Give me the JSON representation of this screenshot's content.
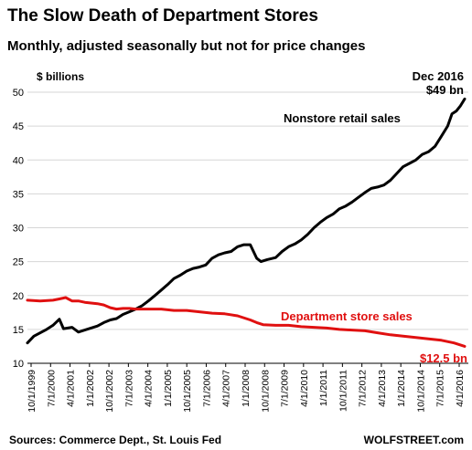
{
  "chart_data": {
    "type": "line",
    "title": "The Slow Death of Department Stores",
    "subtitle": "Monthly, adjusted seasonally but not for price changes",
    "y_unit_label": "$ billions",
    "ylim": [
      10,
      50
    ],
    "y_ticks": [
      10,
      15,
      20,
      25,
      30,
      35,
      40,
      45,
      50
    ],
    "x_tick_labels": [
      "10/1/1999",
      "7/1/2000",
      "4/1/2001",
      "1/1/2002",
      "10/1/2002",
      "7/1/2003",
      "4/1/2004",
      "1/1/2005",
      "10/1/2005",
      "7/1/2006",
      "4/1/2007",
      "1/1/2008",
      "10/1/2008",
      "7/1/2009",
      "4/1/2010",
      "1/1/2011",
      "10/1/2011",
      "7/1/2012",
      "4/1/2013",
      "1/1/2014",
      "10/1/2014",
      "7/1/2015",
      "4/1/2016"
    ],
    "grid": "horizontal",
    "series": [
      {
        "name": "Nonstore retail sales",
        "color": "#000000",
        "points": [
          [
            "1999-10-01",
            13.0
          ],
          [
            "2000-01-01",
            14.0
          ],
          [
            "2000-07-01",
            15.0
          ],
          [
            "2000-10-01",
            15.6
          ],
          [
            "2001-01-01",
            16.5
          ],
          [
            "2001-03-01",
            15.1
          ],
          [
            "2001-07-01",
            15.3
          ],
          [
            "2001-10-01",
            14.6
          ],
          [
            "2002-01-01",
            14.9
          ],
          [
            "2002-07-01",
            15.5
          ],
          [
            "2002-10-01",
            16.0
          ],
          [
            "2003-01-01",
            16.4
          ],
          [
            "2003-04-01",
            16.6
          ],
          [
            "2003-07-01",
            17.2
          ],
          [
            "2003-10-01",
            17.6
          ],
          [
            "2004-01-01",
            18.0
          ],
          [
            "2004-04-01",
            18.5
          ],
          [
            "2004-07-01",
            19.2
          ],
          [
            "2004-10-01",
            20.0
          ],
          [
            "2005-01-01",
            20.8
          ],
          [
            "2005-04-01",
            21.6
          ],
          [
            "2005-07-01",
            22.5
          ],
          [
            "2005-10-01",
            23.0
          ],
          [
            "2006-01-01",
            23.6
          ],
          [
            "2006-04-01",
            24.0
          ],
          [
            "2006-07-01",
            24.2
          ],
          [
            "2006-10-01",
            24.5
          ],
          [
            "2007-01-01",
            25.5
          ],
          [
            "2007-04-01",
            26.0
          ],
          [
            "2007-07-01",
            26.3
          ],
          [
            "2007-10-01",
            26.5
          ],
          [
            "2008-01-01",
            27.2
          ],
          [
            "2008-04-01",
            27.5
          ],
          [
            "2008-07-01",
            27.5
          ],
          [
            "2008-10-01",
            25.5
          ],
          [
            "2008-12-01",
            25.0
          ],
          [
            "2009-03-01",
            25.3
          ],
          [
            "2009-07-01",
            25.6
          ],
          [
            "2009-10-01",
            26.5
          ],
          [
            "2010-01-01",
            27.2
          ],
          [
            "2010-04-01",
            27.6
          ],
          [
            "2010-07-01",
            28.2
          ],
          [
            "2010-10-01",
            29.0
          ],
          [
            "2011-01-01",
            30.0
          ],
          [
            "2011-04-01",
            30.8
          ],
          [
            "2011-07-01",
            31.5
          ],
          [
            "2011-10-01",
            32.0
          ],
          [
            "2012-01-01",
            32.8
          ],
          [
            "2012-04-01",
            33.2
          ],
          [
            "2012-07-01",
            33.8
          ],
          [
            "2012-10-01",
            34.5
          ],
          [
            "2013-01-01",
            35.2
          ],
          [
            "2013-04-01",
            35.8
          ],
          [
            "2013-07-01",
            36.0
          ],
          [
            "2013-10-01",
            36.3
          ],
          [
            "2014-01-01",
            37.0
          ],
          [
            "2014-04-01",
            38.0
          ],
          [
            "2014-07-01",
            39.0
          ],
          [
            "2014-10-01",
            39.5
          ],
          [
            "2015-01-01",
            40.0
          ],
          [
            "2015-04-01",
            40.8
          ],
          [
            "2015-07-01",
            41.2
          ],
          [
            "2015-10-01",
            42.0
          ],
          [
            "2016-01-01",
            43.5
          ],
          [
            "2016-04-01",
            45.0
          ],
          [
            "2016-06-01",
            46.8
          ],
          [
            "2016-08-01",
            47.2
          ],
          [
            "2016-10-01",
            48.0
          ],
          [
            "2016-12-01",
            49.0
          ]
        ]
      },
      {
        "name": "Department store sales",
        "color": "#e01010",
        "points": [
          [
            "1999-10-01",
            19.3
          ],
          [
            "2000-04-01",
            19.2
          ],
          [
            "2000-10-01",
            19.3
          ],
          [
            "2001-01-01",
            19.5
          ],
          [
            "2001-04-01",
            19.7
          ],
          [
            "2001-07-01",
            19.2
          ],
          [
            "2001-10-01",
            19.2
          ],
          [
            "2002-01-01",
            19.0
          ],
          [
            "2002-07-01",
            18.8
          ],
          [
            "2002-10-01",
            18.6
          ],
          [
            "2003-01-01",
            18.2
          ],
          [
            "2003-04-01",
            18.0
          ],
          [
            "2003-07-01",
            18.1
          ],
          [
            "2003-10-01",
            18.1
          ],
          [
            "2004-01-01",
            18.0
          ],
          [
            "2004-07-01",
            18.0
          ],
          [
            "2005-01-01",
            18.0
          ],
          [
            "2005-07-01",
            17.8
          ],
          [
            "2006-01-01",
            17.8
          ],
          [
            "2006-07-01",
            17.6
          ],
          [
            "2007-01-01",
            17.4
          ],
          [
            "2007-07-01",
            17.3
          ],
          [
            "2008-01-01",
            17.0
          ],
          [
            "2008-07-01",
            16.4
          ],
          [
            "2008-10-01",
            16.0
          ],
          [
            "2009-01-01",
            15.7
          ],
          [
            "2009-07-01",
            15.6
          ],
          [
            "2010-01-01",
            15.6
          ],
          [
            "2010-07-01",
            15.4
          ],
          [
            "2011-01-01",
            15.3
          ],
          [
            "2011-07-01",
            15.2
          ],
          [
            "2012-01-01",
            15.0
          ],
          [
            "2012-07-01",
            14.9
          ],
          [
            "2013-01-01",
            14.8
          ],
          [
            "2013-07-01",
            14.5
          ],
          [
            "2014-01-01",
            14.2
          ],
          [
            "2014-07-01",
            14.0
          ],
          [
            "2015-01-01",
            13.8
          ],
          [
            "2015-07-01",
            13.6
          ],
          [
            "2016-01-01",
            13.4
          ],
          [
            "2016-07-01",
            13.0
          ],
          [
            "2016-12-01",
            12.5
          ]
        ]
      }
    ],
    "annotations": {
      "nonstore_label": "Nonstore retail sales",
      "dept_label": "Department store sales",
      "end_date": "Dec 2016",
      "end_value_nonstore": "$49 bn",
      "end_value_dept": "$12.5 bn"
    },
    "source": "Sources: Commerce Dept., St. Louis Fed",
    "credit": "WOLFSTREET.com"
  }
}
